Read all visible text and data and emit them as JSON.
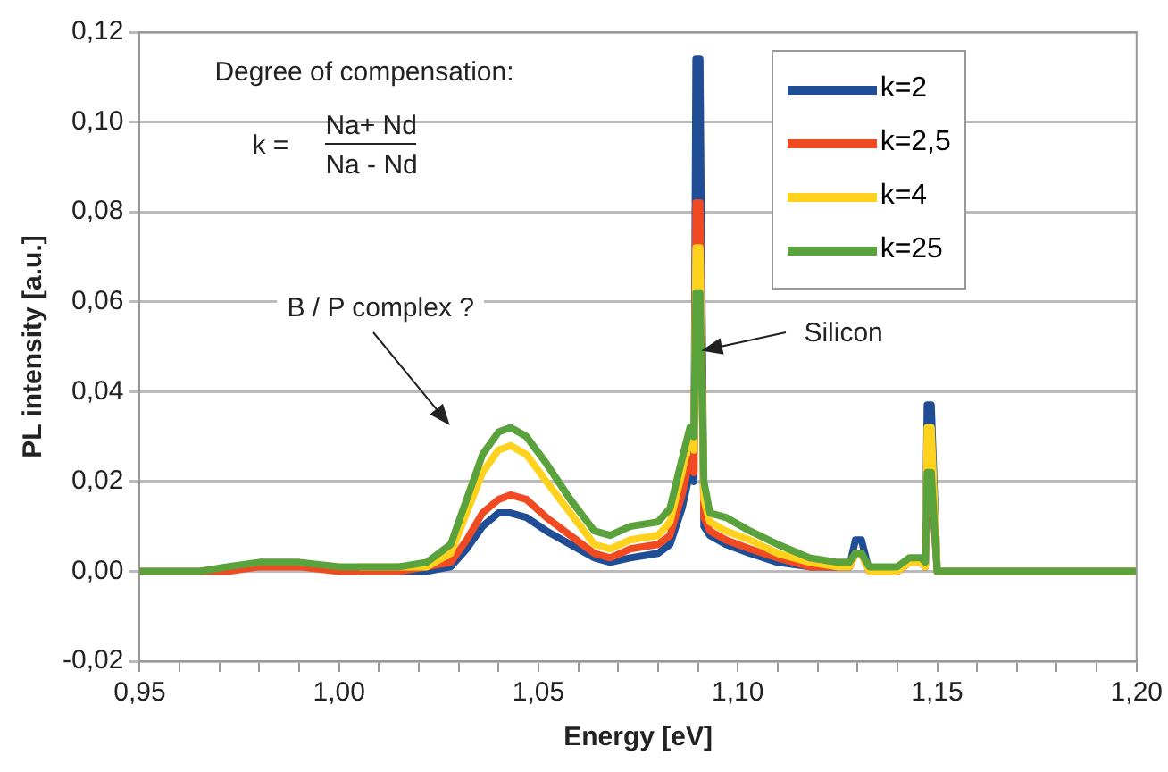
{
  "chart_data": {
    "type": "line",
    "xlabel": "Energy [eV]",
    "ylabel": "PL intensity [a.u.]",
    "x": [
      0.95,
      0.965,
      0.972,
      0.98,
      0.99,
      1.0,
      1.005,
      1.015,
      1.022,
      1.028,
      1.032,
      1.036,
      1.04,
      1.043,
      1.047,
      1.052,
      1.058,
      1.064,
      1.068,
      1.073,
      1.08,
      1.083,
      1.086,
      1.088,
      1.089,
      1.0895,
      1.0905,
      1.0915,
      1.093,
      1.097,
      1.103,
      1.11,
      1.118,
      1.125,
      1.128,
      1.1295,
      1.131,
      1.133,
      1.14,
      1.143,
      1.146,
      1.147,
      1.1475,
      1.1485,
      1.15,
      1.17,
      1.2
    ],
    "series": [
      {
        "name": "k=2",
        "color": "#1f4e96",
        "values": [
          null,
          null,
          null,
          null,
          null,
          null,
          0,
          0,
          0,
          0.001,
          0.005,
          0.01,
          0.013,
          0.013,
          0.012,
          0.009,
          0.006,
          0.003,
          0.002,
          0.003,
          0.004,
          0.006,
          0.014,
          0.022,
          0.02,
          0.114,
          0.114,
          0.01,
          0.008,
          0.006,
          0.004,
          0.002,
          0.001,
          0.001,
          0.001,
          0.007,
          0.007,
          0,
          0,
          0.002,
          0.002,
          0.001,
          0.037,
          0.037,
          0,
          0,
          0
        ]
      },
      {
        "name": "k=2,5",
        "color": "#f04a23",
        "values": [
          0,
          0,
          0,
          0.001,
          0.001,
          0,
          0,
          0,
          0.001,
          0.002,
          0.007,
          0.013,
          0.016,
          0.017,
          0.016,
          0.012,
          0.008,
          0.004,
          0.003,
          0.005,
          0.006,
          0.008,
          0.017,
          0.025,
          0.022,
          0.082,
          0.082,
          0.012,
          0.009,
          0.007,
          0.005,
          0.003,
          0.001,
          0.001,
          0.001,
          0.004,
          0.004,
          0,
          0,
          0.002,
          0.002,
          0.001,
          0.02,
          0.02,
          0,
          0,
          0
        ]
      },
      {
        "name": "k=4",
        "color": "#ffd21e",
        "values": [
          null,
          null,
          null,
          null,
          null,
          null,
          0.001,
          0.001,
          0.001,
          0.004,
          0.013,
          0.022,
          0.027,
          0.028,
          0.026,
          0.02,
          0.013,
          0.006,
          0.005,
          0.007,
          0.008,
          0.011,
          0.022,
          0.03,
          0.027,
          0.072,
          0.072,
          0.016,
          0.011,
          0.009,
          0.007,
          0.004,
          0.002,
          0.001,
          0.001,
          0.004,
          0.004,
          0,
          0,
          0.002,
          0.002,
          0.001,
          0.032,
          0.032,
          0,
          0,
          0
        ]
      },
      {
        "name": "k=25",
        "color": "#5aa23c",
        "values": [
          0,
          0,
          0.001,
          0.002,
          0.002,
          0.001,
          0.001,
          0.001,
          0.002,
          0.006,
          0.016,
          0.026,
          0.031,
          0.032,
          0.03,
          0.024,
          0.016,
          0.009,
          0.008,
          0.01,
          0.011,
          0.014,
          0.025,
          0.032,
          0.03,
          0.062,
          0.062,
          0.02,
          0.013,
          0.012,
          0.009,
          0.006,
          0.003,
          0.002,
          0.002,
          0.004,
          0.004,
          0.001,
          0.001,
          0.003,
          0.003,
          0.002,
          0.022,
          0.022,
          0,
          0,
          0
        ]
      }
    ],
    "xlim": [
      0.95,
      1.2
    ],
    "xticks": [
      {
        "value": 0.95,
        "label": "0,95"
      },
      {
        "value": 0.96,
        "label": null
      },
      {
        "value": 0.97,
        "label": null
      },
      {
        "value": 0.98,
        "label": null
      },
      {
        "value": 0.99,
        "label": null
      },
      {
        "value": 1.0,
        "label": "1,00"
      },
      {
        "value": 1.01,
        "label": null
      },
      {
        "value": 1.02,
        "label": null
      },
      {
        "value": 1.03,
        "label": null
      },
      {
        "value": 1.04,
        "label": null
      },
      {
        "value": 1.05,
        "label": "1,05"
      },
      {
        "value": 1.06,
        "label": null
      },
      {
        "value": 1.07,
        "label": null
      },
      {
        "value": 1.08,
        "label": null
      },
      {
        "value": 1.09,
        "label": null
      },
      {
        "value": 1.1,
        "label": "1,10"
      },
      {
        "value": 1.11,
        "label": null
      },
      {
        "value": 1.12,
        "label": null
      },
      {
        "value": 1.13,
        "label": null
      },
      {
        "value": 1.14,
        "label": null
      },
      {
        "value": 1.15,
        "label": "1,15"
      },
      {
        "value": 1.16,
        "label": null
      },
      {
        "value": 1.17,
        "label": null
      },
      {
        "value": 1.18,
        "label": null
      },
      {
        "value": 1.19,
        "label": null
      },
      {
        "value": 1.2,
        "label": "1,20"
      }
    ],
    "ylim": [
      -0.02,
      0.12
    ],
    "yticks": [
      {
        "value": -0.02,
        "label": "-0,02"
      },
      {
        "value": 0,
        "label": "0,00"
      },
      {
        "value": 0.02,
        "label": "0,02"
      },
      {
        "value": 0.04,
        "label": "0,04"
      },
      {
        "value": 0.06,
        "label": "0,06"
      },
      {
        "value": 0.08,
        "label": "0,08"
      },
      {
        "value": 0.1,
        "label": "0,10"
      },
      {
        "value": 0.12,
        "label": "0,12"
      }
    ],
    "grid": "y",
    "legend": "top right",
    "marker": "none",
    "line_style": "solid",
    "annotations": [
      "Degree of compensation:",
      "k =",
      "Na+ Nd",
      "Na - Nd",
      "B / P complex ?",
      "Silicon"
    ]
  }
}
